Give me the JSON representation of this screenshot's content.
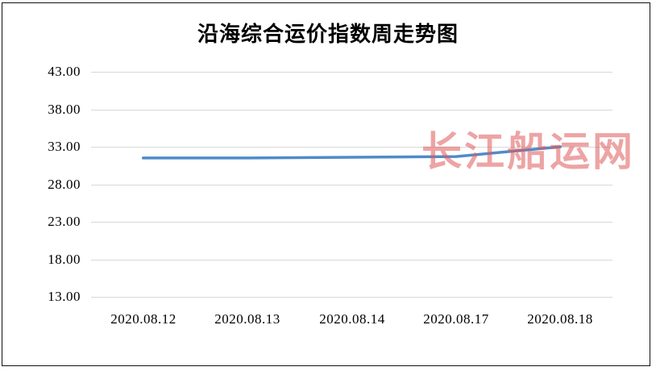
{
  "page": {
    "title": "沿海综合运价指数周走势图",
    "watermark": "长江船运网"
  },
  "colors": {
    "line": "#4f8bc9",
    "grid": "#d8d8d8",
    "watermark": "#e05a5a",
    "text": "#000000",
    "frame": "#111111"
  },
  "chart_data": {
    "type": "line",
    "title": "沿海综合运价指数周走势图",
    "categories": [
      "2020.08.12",
      "2020.08.13",
      "2020.08.14",
      "2020.08.17",
      "2020.08.18"
    ],
    "values": [
      31.5,
      31.5,
      31.6,
      31.7,
      33.0
    ],
    "y_ticks": [
      43,
      38,
      33,
      28,
      23,
      18,
      13
    ],
    "y_tick_labels": [
      "43.00",
      "38.00",
      "33.00",
      "28.00",
      "23.00",
      "18.00",
      "13.00"
    ],
    "ylim": [
      13,
      43
    ],
    "xlabel": "",
    "ylabel": "",
    "grid": true,
    "legend": "none"
  }
}
